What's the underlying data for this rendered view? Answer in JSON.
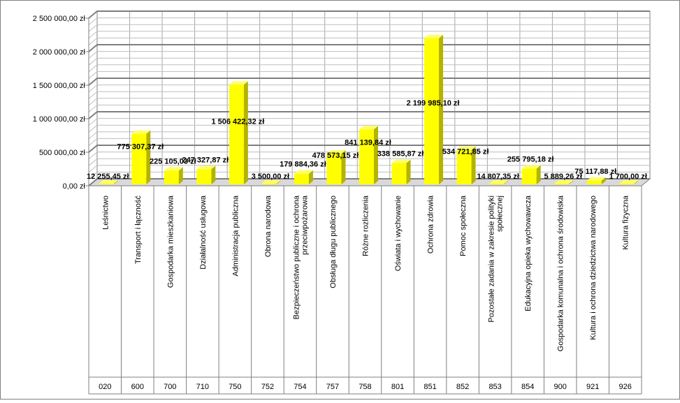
{
  "chart_data": {
    "type": "bar",
    "style": "3d-column",
    "title": "",
    "xlabel": "",
    "ylabel": "",
    "ylim": [
      0,
      2500000
    ],
    "y_ticks": [
      {
        "value": 0,
        "label": "0,00 zł"
      },
      {
        "value": 500000,
        "label": "500 000,00 zł"
      },
      {
        "value": 1000000,
        "label": "1 000 000,00 zł"
      },
      {
        "value": 1500000,
        "label": "1 500 000,00 zł"
      },
      {
        "value": 2000000,
        "label": "2 000 000,00 zł"
      },
      {
        "value": 2500000,
        "label": "2 500 000,00 zł"
      }
    ],
    "grid": true,
    "legend": "none",
    "colors": {
      "bar_front": "#ffff00",
      "bar_side": "#b3b300",
      "bar_top": "#ffff66",
      "grid": "#808080",
      "wall": "#ffffff"
    },
    "categories": [
      {
        "code": "020",
        "name": "Leśnictwo",
        "value": 12255.45,
        "label": "12 255,45 zł"
      },
      {
        "code": "600",
        "name": "Transport i łączność",
        "value": 775307.37,
        "label": "775 307,37 zł"
      },
      {
        "code": "700",
        "name": "Gospodarka mieszkaniowa",
        "value": 225105.03,
        "label": "225 105,03 zł"
      },
      {
        "code": "710",
        "name": "Działalność usługowa",
        "value": 247327.87,
        "label": "247 327,87 zł"
      },
      {
        "code": "750",
        "name": "Administracja publiczna",
        "value": 1506422.32,
        "label": "1 506 422,32 zł"
      },
      {
        "code": "752",
        "name": "Obrona narodowa",
        "value": 3500.0,
        "label": "3 500,00 zł"
      },
      {
        "code": "754",
        "name": "Bezpieczeństwo publiczne i ochrona przeciwpożarowa",
        "value": 179884.36,
        "label": "179 884,36 zł"
      },
      {
        "code": "757",
        "name": "Obsługa długu publicznego",
        "value": 478573.15,
        "label": "478 573,15 zł"
      },
      {
        "code": "758",
        "name": "Różne rozliczenia",
        "value": 841139.84,
        "label": "841 139,84 zł"
      },
      {
        "code": "801",
        "name": "Oświata i wychowanie",
        "value": 338585.87,
        "label": "338 585,87 zł"
      },
      {
        "code": "851",
        "name": "Ochrona zdrowia",
        "value": 2199985.1,
        "label": "2 199 985,10 zł"
      },
      {
        "code": "852",
        "name": "Pomoc społeczna",
        "value": 534721.85,
        "label": "534 721,85 zł"
      },
      {
        "code": "853",
        "name": "Pozostałe zadania w zakresie polityki społecznej",
        "value": 14807.35,
        "label": "14 807,35 zł"
      },
      {
        "code": "854",
        "name": "Edukacyjna opieka wychowawcza",
        "value": 255795.18,
        "label": "255 795,18 zł"
      },
      {
        "code": "900",
        "name": "Gospodarka komunalna i ochrona środowiska",
        "value": 5889.26,
        "label": "5 889,26 zł"
      },
      {
        "code": "921",
        "name": "Kultura i ochrona dziedzictwa narodowego",
        "value": 75117.88,
        "label": "75 117,88 zł"
      },
      {
        "code": "926",
        "name": "Kultura fizyczna",
        "value": 1700.0,
        "label": "1 700,00 zł"
      }
    ]
  }
}
